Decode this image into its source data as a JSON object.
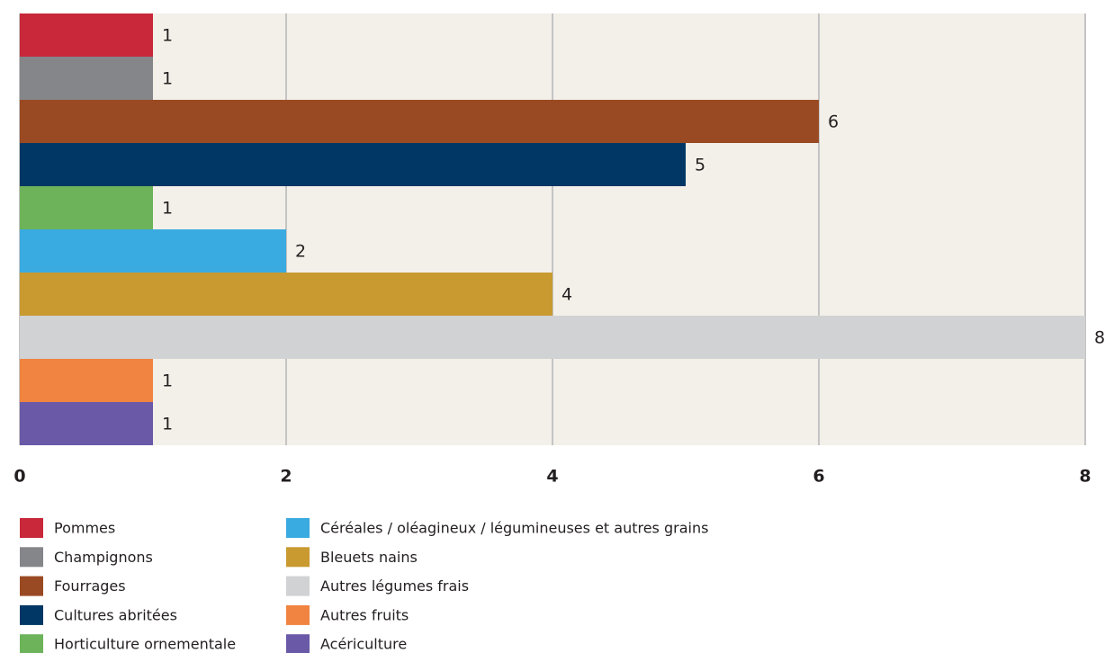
{
  "chart_data": {
    "type": "bar",
    "orientation": "horizontal",
    "categories": [
      "Pommes",
      "Champignons",
      "Fourrages",
      "Cultures abritées",
      "Horticulture ornementale",
      "Céréales / oléagineux / légumineuses et autres grains",
      "Bleuets nains",
      "Autres légumes frais",
      "Autres fruits",
      "Acériculture"
    ],
    "values": [
      1,
      1,
      6,
      5,
      1,
      2,
      4,
      8,
      1,
      1
    ],
    "colors": [
      "#c8283a",
      "#85868a",
      "#9a4a22",
      "#003764",
      "#6cb35a",
      "#3aabe0",
      "#c89a30",
      "#d1d2d4",
      "#f08440",
      "#6a59a7"
    ],
    "xlim": [
      0,
      8
    ],
    "xticks": [
      0,
      2,
      4,
      6,
      8
    ],
    "grid": true,
    "legend": "bottom"
  }
}
